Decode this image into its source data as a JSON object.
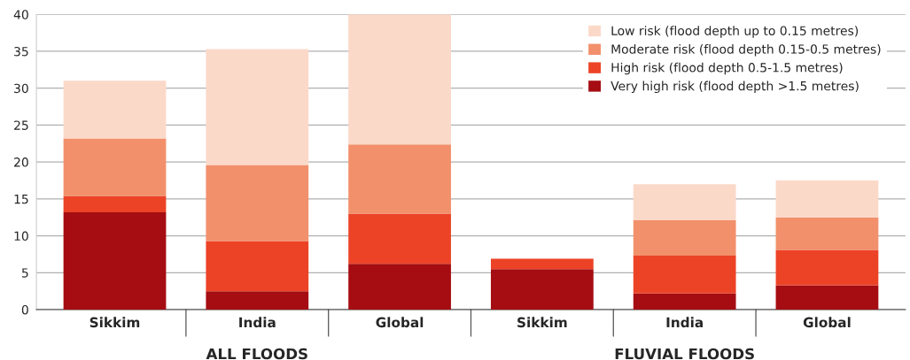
{
  "chart_data": {
    "type": "bar",
    "stacked": true,
    "categories": [
      "Sikkim",
      "India",
      "Global",
      "Sikkim",
      "India",
      "Global"
    ],
    "series": [
      {
        "name": "Very high risk (flood depth >1.5 metres)",
        "color": "#a50d12",
        "values": [
          13.2,
          2.5,
          6.2,
          5.5,
          2.2,
          3.3
        ]
      },
      {
        "name": "High risk (flood depth 0.5-1.5 metres)",
        "color": "#ec4327",
        "values": [
          2.2,
          6.8,
          6.8,
          1.4,
          5.1,
          4.8
        ]
      },
      {
        "name": "Moderate risk (flood depth 0.15-0.5 metres)",
        "color": "#f2906b",
        "values": [
          7.8,
          10.3,
          9.4,
          null,
          4.8,
          4.4
        ]
      },
      {
        "name": "Low risk (flood depth up to 0.15 metres)",
        "color": "#fbd9c9",
        "values": [
          7.8,
          15.7,
          17.6,
          null,
          4.9,
          5.0
        ]
      }
    ],
    "ylim": [
      0,
      40
    ],
    "yticks": [
      0,
      5,
      10,
      15,
      20,
      25,
      30,
      35,
      40
    ],
    "grid": "y",
    "legend": "top right",
    "annotations": [
      "ALL FLOODS",
      "FLUVIAL FLOODS"
    ]
  }
}
